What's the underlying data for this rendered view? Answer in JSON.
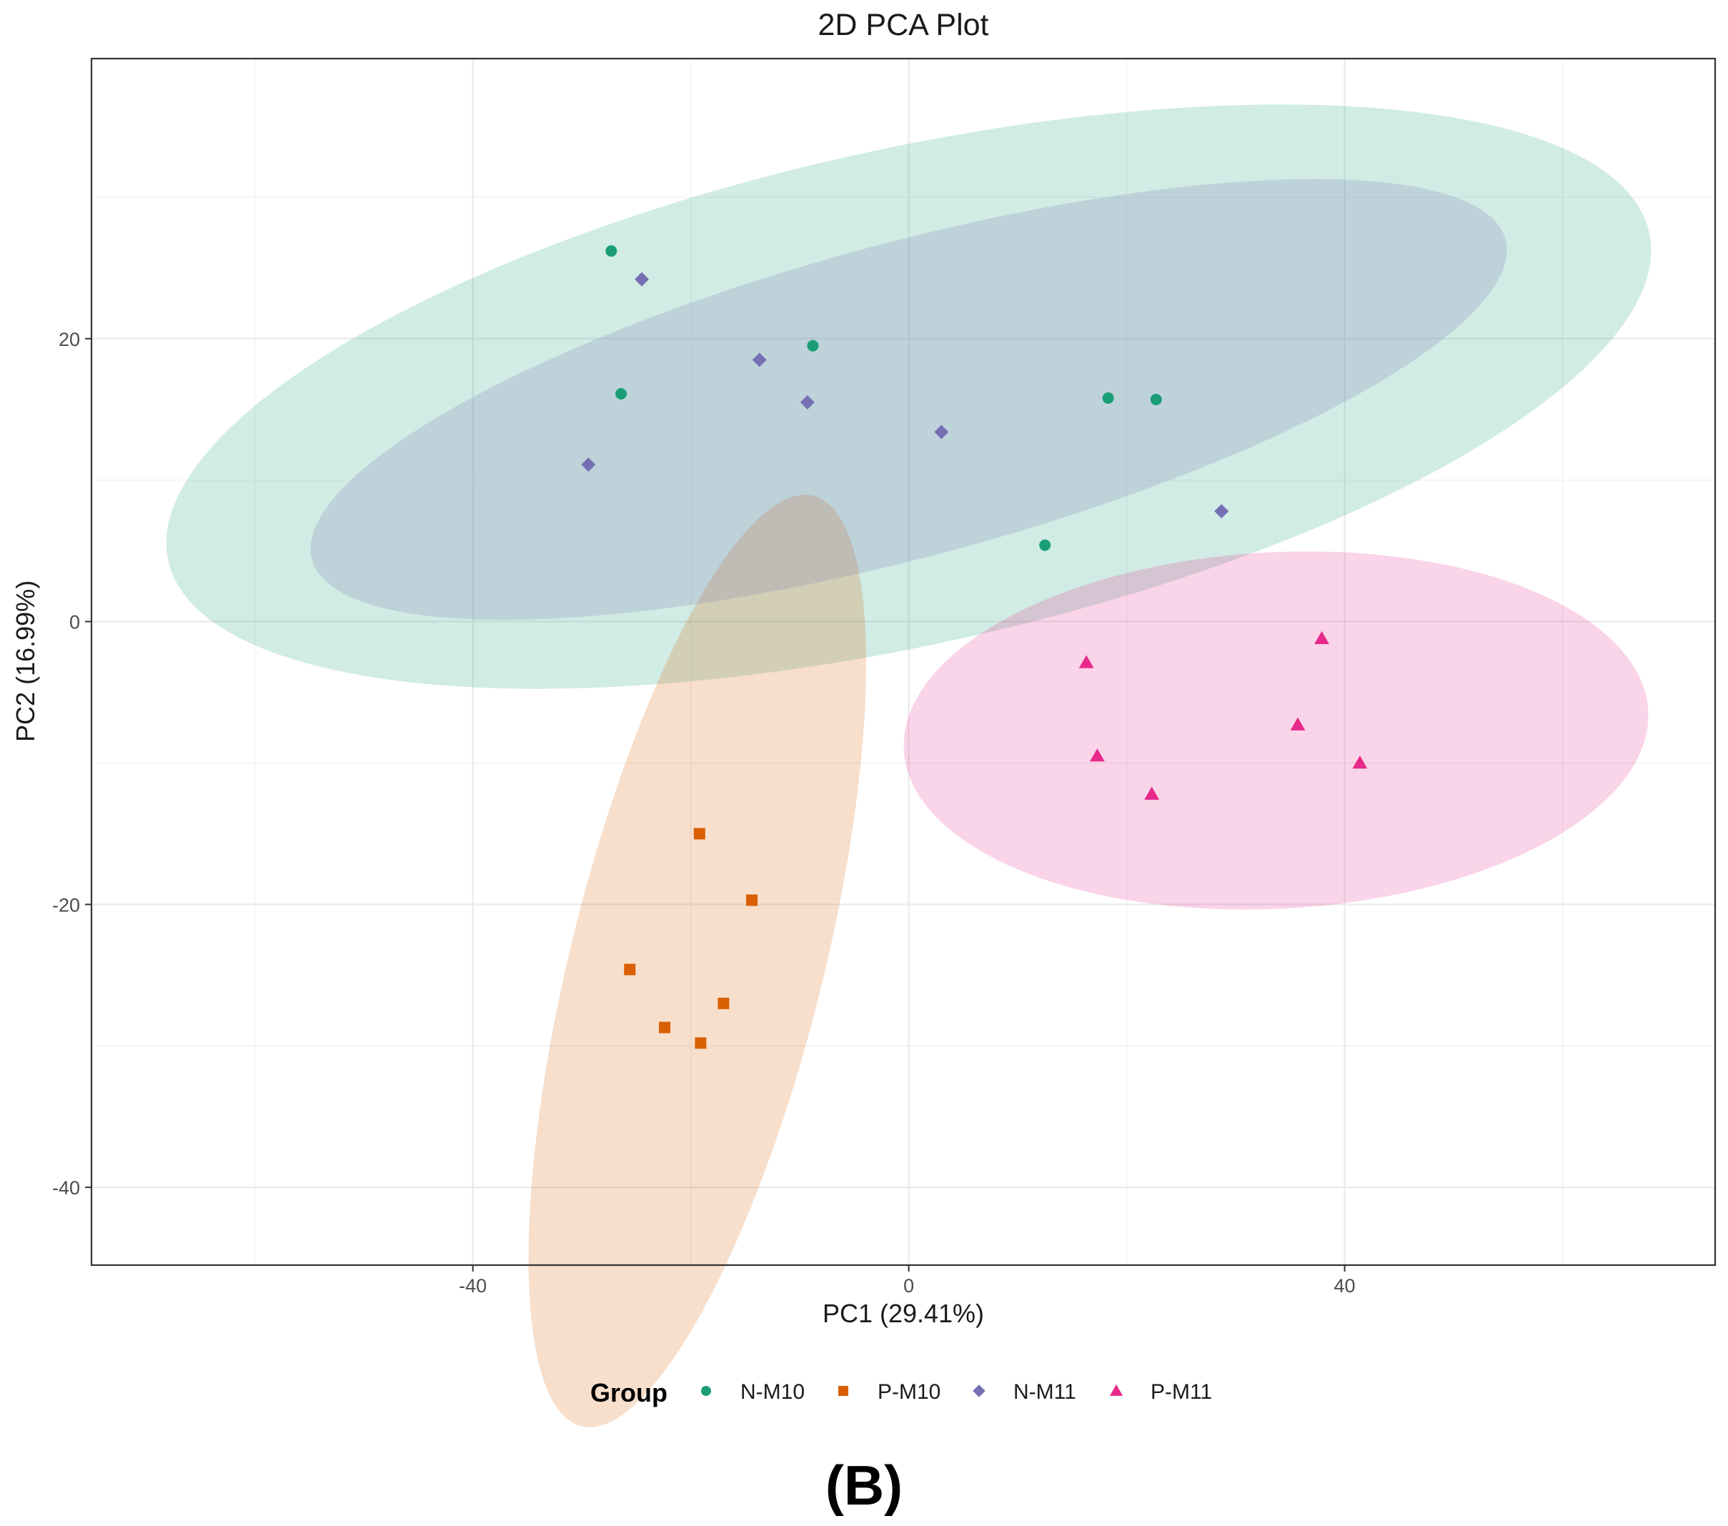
{
  "chart_data": {
    "type": "scatter",
    "title": "2D PCA Plot",
    "xlabel": "PC1 (29.41%)",
    "ylabel": "PC2 (16.99%)",
    "xlim": [
      -75,
      74
    ],
    "ylim": [
      -45.5,
      39.8
    ],
    "xticks": [
      -40,
      0,
      40
    ],
    "xtick_labels": [
      "-40",
      "0",
      "40"
    ],
    "yticks": [
      -40,
      -20,
      0,
      20
    ],
    "ytick_labels": [
      "-40",
      "-20",
      "0",
      "20"
    ],
    "x_minor_grid": [
      -60,
      -20,
      20,
      60
    ],
    "y_minor_grid": [
      -30,
      -10,
      10,
      30
    ],
    "grid": true,
    "legend": {
      "title": "Group",
      "position": "bottom"
    },
    "panel_label": "(B)",
    "series": [
      {
        "name": "N-M10",
        "color": "#1b9e77",
        "shape": "circle",
        "points": [
          {
            "x": -27.3,
            "y": 26.2
          },
          {
            "x": -8.8,
            "y": 19.5
          },
          {
            "x": -26.4,
            "y": 16.1
          },
          {
            "x": 18.3,
            "y": 15.8
          },
          {
            "x": 22.7,
            "y": 15.7
          },
          {
            "x": 12.5,
            "y": 5.4
          }
        ],
        "ellipse": {
          "cx": 0.0,
          "cy": 15.9,
          "rx": 69.6,
          "ry": 17.5,
          "angle": -12.5
        }
      },
      {
        "name": "P-M10",
        "color": "#d95f02",
        "shape": "square",
        "points": [
          {
            "x": -19.2,
            "y": -15.0
          },
          {
            "x": -14.4,
            "y": -19.7
          },
          {
            "x": -25.6,
            "y": -24.6
          },
          {
            "x": -17.0,
            "y": -27.0
          },
          {
            "x": -22.4,
            "y": -28.7
          },
          {
            "x": -19.1,
            "y": -29.8
          }
        ],
        "ellipse": {
          "cx": -19.4,
          "cy": -24.0,
          "rx": 11.6,
          "ry": 33.9,
          "angle": 14
        }
      },
      {
        "name": "N-M11",
        "color": "#7570b3",
        "shape": "diamond",
        "points": [
          {
            "x": -24.5,
            "y": 24.2
          },
          {
            "x": -13.7,
            "y": 18.5
          },
          {
            "x": -9.3,
            "y": 15.5
          },
          {
            "x": 3.0,
            "y": 13.4
          },
          {
            "x": -29.4,
            "y": 11.1
          },
          {
            "x": 28.7,
            "y": 7.8
          }
        ],
        "ellipse": {
          "cx": 0.0,
          "cy": 15.7,
          "rx": 56.7,
          "ry": 11.1,
          "angle": -15
        }
      },
      {
        "name": "P-M11",
        "color": "#e7298a",
        "shape": "triangle",
        "points": [
          {
            "x": 37.9,
            "y": -1.2
          },
          {
            "x": 16.3,
            "y": -2.9
          },
          {
            "x": 35.7,
            "y": -7.3
          },
          {
            "x": 17.3,
            "y": -9.5
          },
          {
            "x": 41.4,
            "y": -10.0
          },
          {
            "x": 22.3,
            "y": -12.2
          }
        ],
        "ellipse": {
          "cx": 33.7,
          "cy": -7.7,
          "rx": 34.2,
          "ry": 12.6,
          "angle": -3
        }
      }
    ]
  }
}
